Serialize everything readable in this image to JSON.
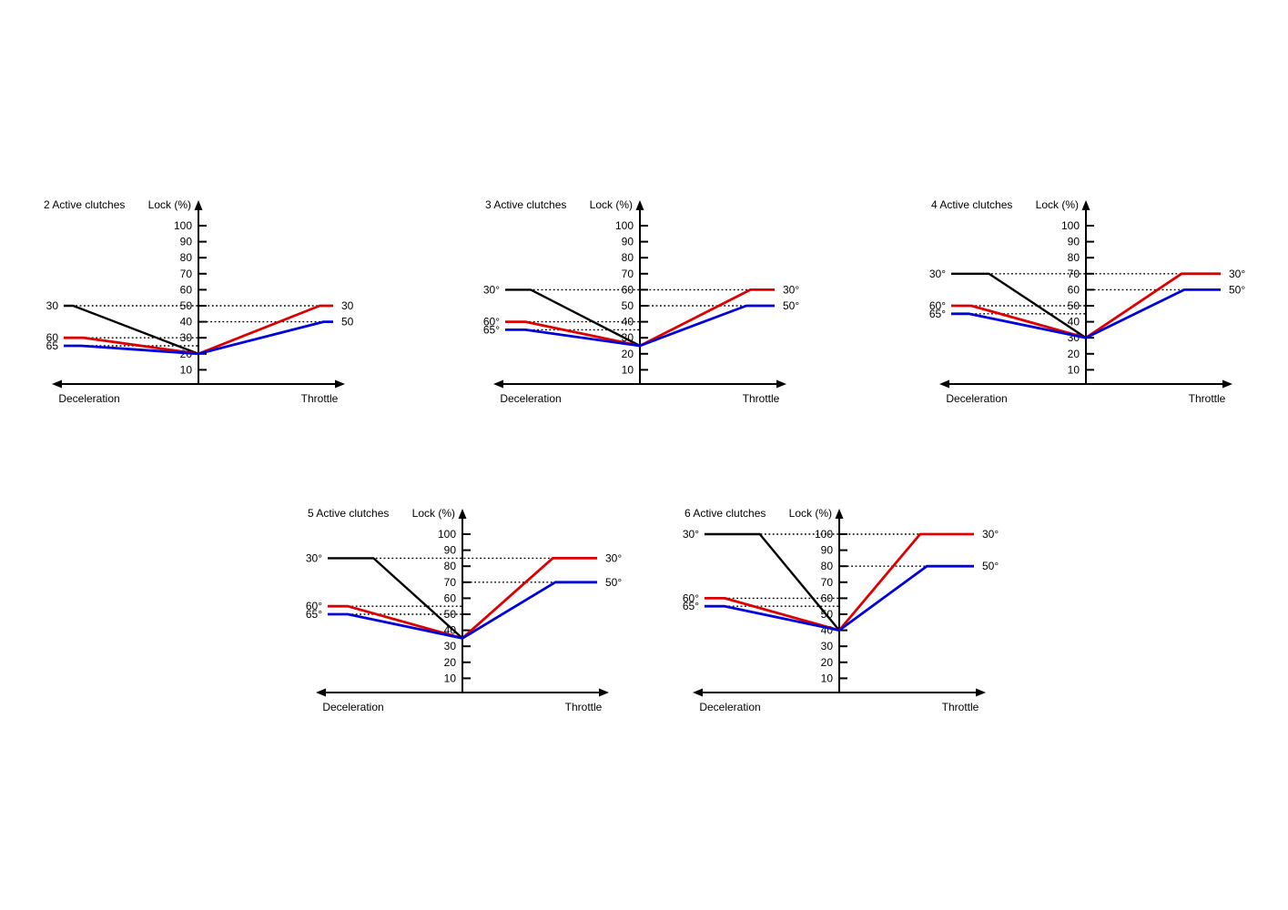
{
  "colors": {
    "axis": "#000000",
    "black_series": "#000000",
    "red_series": "#dd0000",
    "blue_series": "#0000dd",
    "guide": "#000000"
  },
  "chart_data": [
    {
      "type": "line",
      "title": "2 Active clutches",
      "ylabel": "Lock (%)",
      "xlabel_left": "Deceleration",
      "xlabel_right": "Throttle",
      "y_ticks": [
        100,
        90,
        80,
        70,
        60,
        50,
        40,
        30,
        20,
        10
      ],
      "ylim": [
        0,
        105
      ],
      "center_lock_pct": 20,
      "series": [
        {
          "name": "steering-30deg",
          "color": "black",
          "left_label": "30",
          "points": [
            [
              -1,
              50
            ],
            [
              -0.93,
              50
            ],
            [
              0,
              20
            ]
          ]
        },
        {
          "name": "steering-60deg",
          "color": "red",
          "left_label": "60",
          "right_label": "30",
          "points": [
            [
              -1,
              30
            ],
            [
              -0.85,
              30
            ],
            [
              0,
              20
            ],
            [
              0.9,
              50
            ],
            [
              1,
              50
            ]
          ]
        },
        {
          "name": "steering-65deg",
          "color": "blue",
          "left_label": "65",
          "right_label": "50",
          "points": [
            [
              -1,
              25
            ],
            [
              -0.87,
              25
            ],
            [
              0,
              20
            ],
            [
              0.93,
              40
            ],
            [
              1,
              40
            ]
          ]
        }
      ],
      "guides": [
        {
          "level": 50,
          "span": "full"
        },
        {
          "level": 40,
          "span": "right"
        },
        {
          "level": 30,
          "span": "left"
        },
        {
          "level": 25,
          "span": "left"
        }
      ]
    },
    {
      "type": "line",
      "title": "3 Active clutches",
      "ylabel": "Lock (%)",
      "xlabel_left": "Deceleration",
      "xlabel_right": "Throttle",
      "y_ticks": [
        100,
        90,
        80,
        70,
        60,
        50,
        40,
        30,
        20,
        10
      ],
      "ylim": [
        0,
        105
      ],
      "center_lock_pct": 25,
      "series": [
        {
          "name": "steering-30deg",
          "color": "black",
          "left_label": "30°",
          "points": [
            [
              -1,
              60
            ],
            [
              -0.81,
              60
            ],
            [
              0,
              25
            ]
          ]
        },
        {
          "name": "steering-60deg",
          "color": "red",
          "left_label": "60°",
          "right_label": "30°",
          "points": [
            [
              -1,
              40
            ],
            [
              -0.85,
              40
            ],
            [
              0,
              25
            ],
            [
              0.82,
              60
            ],
            [
              1,
              60
            ]
          ]
        },
        {
          "name": "steering-65deg",
          "color": "blue",
          "left_label": "65°",
          "right_label": "50°",
          "points": [
            [
              -1,
              35
            ],
            [
              -0.85,
              35
            ],
            [
              0,
              25
            ],
            [
              0.79,
              50
            ],
            [
              1,
              50
            ]
          ]
        }
      ],
      "guides": [
        {
          "level": 60,
          "span": "full"
        },
        {
          "level": 50,
          "span": "right"
        },
        {
          "level": 40,
          "span": "left"
        },
        {
          "level": 35,
          "span": "left"
        }
      ]
    },
    {
      "type": "line",
      "title": "4 Active clutches",
      "ylabel": "Lock (%)",
      "xlabel_left": "Deceleration",
      "xlabel_right": "Throttle",
      "y_ticks": [
        100,
        90,
        80,
        70,
        60,
        50,
        40,
        30,
        20,
        10
      ],
      "ylim": [
        0,
        105
      ],
      "center_lock_pct": 30,
      "series": [
        {
          "name": "steering-30deg",
          "color": "black",
          "left_label": "30°",
          "points": [
            [
              -1,
              70
            ],
            [
              -0.72,
              70
            ],
            [
              0,
              30
            ]
          ]
        },
        {
          "name": "steering-60deg",
          "color": "red",
          "left_label": "60°",
          "right_label": "30°",
          "points": [
            [
              -1,
              50
            ],
            [
              -0.85,
              50
            ],
            [
              0,
              30
            ],
            [
              0.71,
              70
            ],
            [
              1,
              70
            ]
          ]
        },
        {
          "name": "steering-65deg",
          "color": "blue",
          "left_label": "65°",
          "right_label": "50°",
          "points": [
            [
              -1,
              45
            ],
            [
              -0.87,
              45
            ],
            [
              0,
              30
            ],
            [
              0.73,
              60
            ],
            [
              1,
              60
            ]
          ]
        }
      ],
      "guides": [
        {
          "level": 70,
          "span": "full"
        },
        {
          "level": 60,
          "span": "right"
        },
        {
          "level": 50,
          "span": "left"
        },
        {
          "level": 45,
          "span": "left"
        }
      ]
    },
    {
      "type": "line",
      "title": "5 Active clutches",
      "ylabel": "Lock (%)",
      "xlabel_left": "Deceleration",
      "xlabel_right": "Throttle",
      "y_ticks": [
        100,
        90,
        80,
        70,
        60,
        50,
        40,
        30,
        20,
        10
      ],
      "ylim": [
        0,
        105
      ],
      "center_lock_pct": 35,
      "series": [
        {
          "name": "steering-30deg",
          "color": "black",
          "left_label": "30°",
          "points": [
            [
              -1,
              85
            ],
            [
              -0.66,
              85
            ],
            [
              0,
              35
            ]
          ]
        },
        {
          "name": "steering-60deg",
          "color": "red",
          "left_label": "60°",
          "right_label": "30°",
          "points": [
            [
              -1,
              55
            ],
            [
              -0.85,
              55
            ],
            [
              0,
              35
            ],
            [
              0.67,
              85
            ],
            [
              1,
              85
            ]
          ]
        },
        {
          "name": "steering-65deg",
          "color": "blue",
          "left_label": "65°",
          "right_label": "50°",
          "points": [
            [
              -1,
              50
            ],
            [
              -0.85,
              50
            ],
            [
              0,
              35
            ],
            [
              0.69,
              70
            ],
            [
              1,
              70
            ]
          ]
        }
      ],
      "guides": [
        {
          "level": 85,
          "span": "full"
        },
        {
          "level": 70,
          "span": "right"
        },
        {
          "level": 55,
          "span": "left"
        },
        {
          "level": 50,
          "span": "left"
        }
      ]
    },
    {
      "type": "line",
      "title": "6 Active clutches",
      "ylabel": "Lock (%)",
      "xlabel_left": "Deceleration",
      "xlabel_right": "Throttle",
      "y_ticks": [
        100,
        90,
        80,
        70,
        60,
        50,
        40,
        30,
        20,
        10
      ],
      "ylim": [
        0,
        105
      ],
      "center_lock_pct": 40,
      "series": [
        {
          "name": "steering-30deg",
          "color": "black",
          "left_label": "30°",
          "points": [
            [
              -1,
              100
            ],
            [
              -0.59,
              100
            ],
            [
              0,
              40
            ]
          ]
        },
        {
          "name": "steering-60deg",
          "color": "red",
          "left_label": "60°",
          "right_label": "30°",
          "points": [
            [
              -1,
              60
            ],
            [
              -0.85,
              60
            ],
            [
              0,
              40
            ],
            [
              0.6,
              100
            ],
            [
              1,
              100
            ]
          ]
        },
        {
          "name": "steering-65deg",
          "color": "blue",
          "left_label": "65°",
          "right_label": "50°",
          "points": [
            [
              -1,
              55
            ],
            [
              -0.85,
              55
            ],
            [
              0,
              40
            ],
            [
              0.65,
              80
            ],
            [
              1,
              80
            ]
          ]
        }
      ],
      "guides": [
        {
          "level": 100,
          "span": "full"
        },
        {
          "level": 80,
          "span": "right"
        },
        {
          "level": 60,
          "span": "left"
        },
        {
          "level": 55,
          "span": "left"
        }
      ]
    }
  ]
}
